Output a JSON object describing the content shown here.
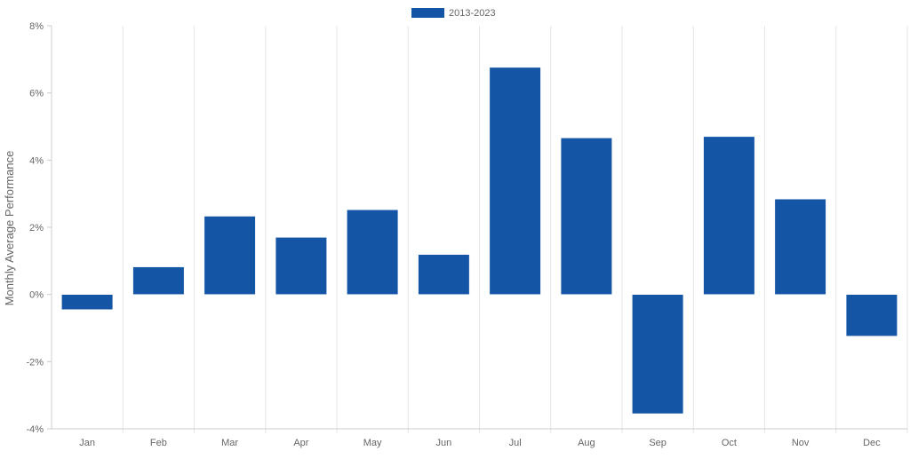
{
  "chart_data": {
    "type": "bar",
    "categories": [
      "Jan",
      "Feb",
      "Mar",
      "Apr",
      "May",
      "Jun",
      "Jul",
      "Aug",
      "Sep",
      "Oct",
      "Nov",
      "Dec"
    ],
    "series": [
      {
        "name": "2013-2023",
        "values": [
          -0.45,
          0.82,
          2.33,
          1.7,
          2.52,
          1.19,
          6.76,
          4.66,
          -3.55,
          4.7,
          2.84,
          -1.24
        ]
      }
    ],
    "title": "",
    "xlabel": "",
    "ylabel": "Monthly Average Performance",
    "ylim": [
      -4,
      8
    ],
    "yticks": [
      -4,
      -2,
      0,
      2,
      4,
      6,
      8
    ],
    "ytick_labels": [
      "-4%",
      "-2%",
      "0%",
      "2%",
      "4%",
      "6%",
      "8%"
    ],
    "grid": "vertical",
    "legend_position": "top-center",
    "colors": {
      "bar": "#1555a6",
      "grid": "#e6e6e6",
      "axis": "#cccccc",
      "text": "#666666"
    }
  }
}
